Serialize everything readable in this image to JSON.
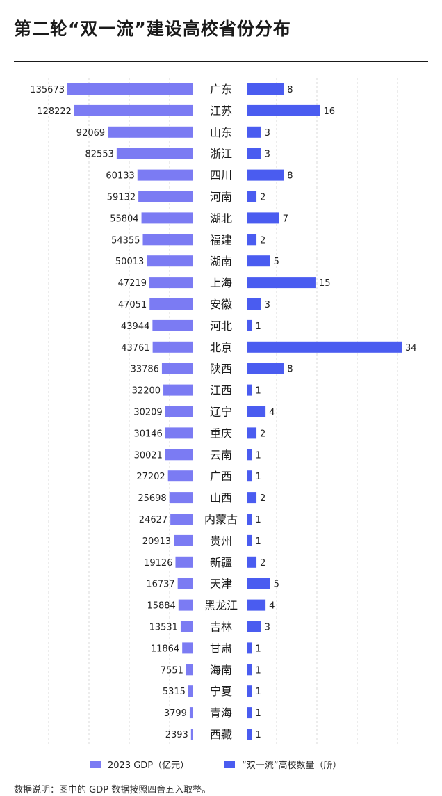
{
  "title": "第二轮“双一流”建设高校省份分布",
  "legend": {
    "gdp": "2023 GDP（亿元）",
    "count": "“双一流”高校数量（所）"
  },
  "footnote": "数据说明：图中的 GDP 数据按照四舍五入取整。",
  "colors": {
    "gdp_bar": "#7b7bf3",
    "count_bar": "#4a5cf0"
  },
  "chart_data": {
    "type": "bar",
    "categories": [
      "广东",
      "江苏",
      "山东",
      "浙江",
      "四川",
      "河南",
      "湖北",
      "福建",
      "湖南",
      "上海",
      "安徽",
      "河北",
      "北京",
      "陕西",
      "江西",
      "辽宁",
      "重庆",
      "云南",
      "广西",
      "山西",
      "内蒙古",
      "贵州",
      "新疆",
      "天津",
      "黑龙江",
      "吉林",
      "甘肃",
      "海南",
      "宁夏",
      "青海",
      "西藏"
    ],
    "series": [
      {
        "name": "2023 GDP（亿元）",
        "values": [
          135673,
          128222,
          92069,
          82553,
          60133,
          59132,
          55804,
          54355,
          50013,
          47219,
          47051,
          43944,
          43761,
          33786,
          32200,
          30209,
          30146,
          30021,
          27202,
          25698,
          24627,
          20913,
          19126,
          16737,
          15884,
          13531,
          11864,
          7551,
          5315,
          3799,
          2393
        ]
      },
      {
        "name": "“双一流”高校数量（所）",
        "values": [
          8,
          16,
          3,
          3,
          8,
          2,
          7,
          2,
          5,
          15,
          3,
          1,
          34,
          8,
          1,
          4,
          2,
          1,
          1,
          2,
          1,
          1,
          2,
          5,
          4,
          3,
          1,
          1,
          1,
          1,
          1
        ]
      }
    ],
    "orientation": "horizontal-butterfly",
    "grid": "vertical dashed"
  }
}
